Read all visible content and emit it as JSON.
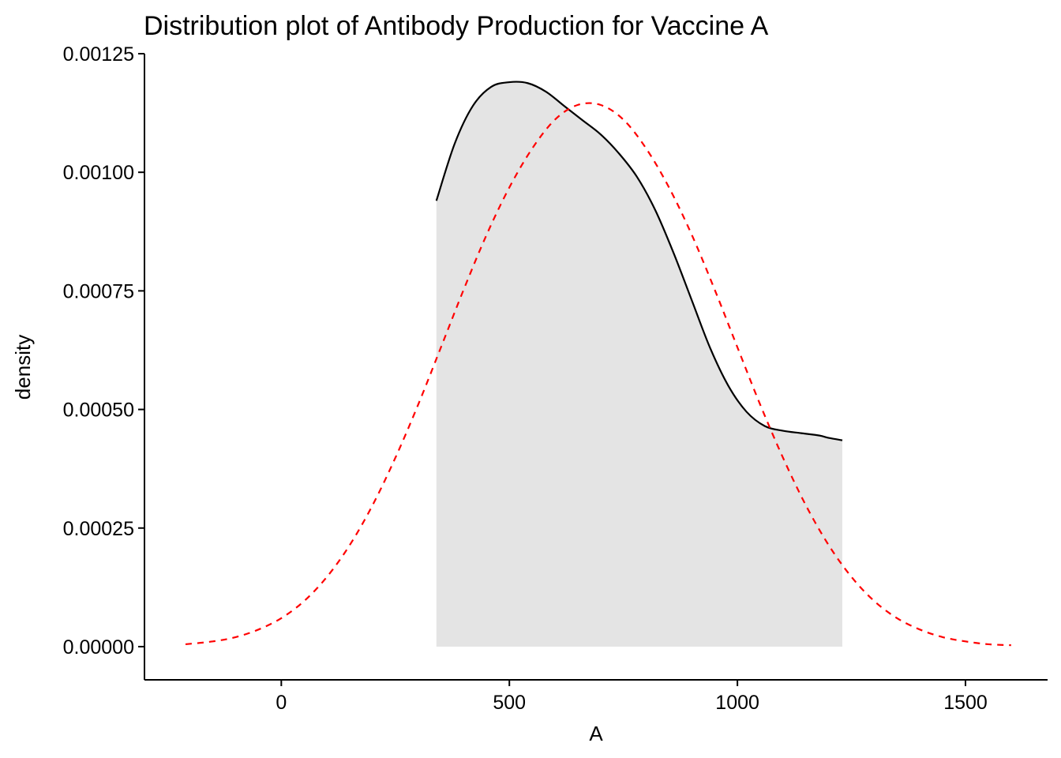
{
  "chart_data": {
    "type": "area",
    "title": "Distribution plot of Antibody Production for Vaccine A",
    "xlabel": "A",
    "ylabel": "density",
    "xlim": [
      -300,
      1680
    ],
    "ylim": [
      -7e-05,
      0.00125
    ],
    "x_ticks": [
      0,
      500,
      1000,
      1500
    ],
    "x_tick_labels": [
      "0",
      "500",
      "1000",
      "1500"
    ],
    "y_ticks": [
      0,
      0.00025,
      0.0005,
      0.00075,
      0.001,
      0.00125
    ],
    "y_tick_labels": [
      "0.00000",
      "0.00025",
      "0.00050",
      "0.00075",
      "0.00100",
      "0.00125"
    ],
    "grid": false,
    "legend": "none",
    "series": [
      {
        "style": "area-solid",
        "fill_color": "#e4e4e4",
        "line_color": "#000000",
        "x": [
          340,
          380,
          420,
          460,
          500,
          540,
          580,
          620,
          660,
          700,
          740,
          780,
          820,
          860,
          900,
          940,
          980,
          1020,
          1060,
          1100,
          1140,
          1180,
          1200,
          1230
        ],
        "y": [
          0.00094,
          0.00106,
          0.00114,
          0.00118,
          0.00119,
          0.001188,
          0.00117,
          0.00114,
          0.00111,
          0.00108,
          0.00104,
          0.00099,
          0.00092,
          0.00083,
          0.00073,
          0.00063,
          0.00055,
          0.000495,
          0.000465,
          0.000455,
          0.00045,
          0.000445,
          0.00044,
          0.000435
        ]
      },
      {
        "style": "dashed",
        "line_color": "#ff0000",
        "x": [
          -210,
          -150,
          -100,
          -50,
          0,
          50,
          100,
          150,
          200,
          250,
          300,
          350,
          400,
          450,
          500,
          550,
          600,
          650,
          700,
          750,
          800,
          850,
          900,
          950,
          1000,
          1050,
          1100,
          1150,
          1200,
          1250,
          1300,
          1350,
          1400,
          1450,
          1500,
          1550,
          1600
        ],
        "y": [
          5e-06,
          1.1e-05,
          2e-05,
          3.6e-05,
          6e-05,
          9.6e-05,
          0.000147,
          0.000214,
          0.000298,
          0.000398,
          0.00051,
          0.000631,
          0.000753,
          0.000868,
          0.000968,
          0.00105,
          0.001111,
          0.001142,
          0.001142,
          0.001111,
          0.00105,
          0.000968,
          0.000868,
          0.000753,
          0.000631,
          0.00051,
          0.000398,
          0.000298,
          0.000214,
          0.000147,
          9.6e-05,
          6e-05,
          3.6e-05,
          2e-05,
          1.1e-05,
          5e-06,
          3e-06
        ]
      }
    ]
  }
}
